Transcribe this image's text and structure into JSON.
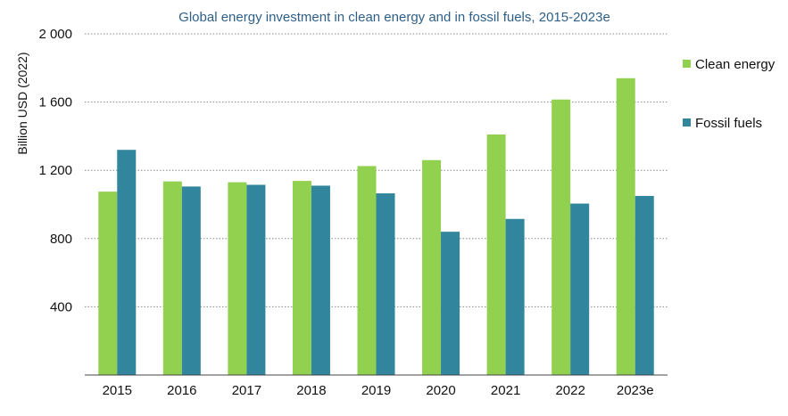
{
  "chart_data": {
    "type": "bar",
    "title": "Global energy investment in clean energy and in fossil fuels, 2015-2023e",
    "xlabel": "",
    "ylabel": "Billion USD (2022)",
    "categories": [
      "2015",
      "2016",
      "2017",
      "2018",
      "2019",
      "2020",
      "2021",
      "2022",
      "2023e"
    ],
    "series": [
      {
        "name": "Clean energy",
        "color": "#92d050",
        "values": [
          1075,
          1135,
          1130,
          1138,
          1225,
          1260,
          1410,
          1615,
          1740
        ]
      },
      {
        "name": "Fossil fuels",
        "color": "#31859c",
        "values": [
          1320,
          1105,
          1115,
          1110,
          1065,
          840,
          915,
          1005,
          1050
        ]
      }
    ],
    "ylim": [
      0,
      2000
    ],
    "yticks": [
      {
        "value": 400,
        "label": "400"
      },
      {
        "value": 800,
        "label": "800"
      },
      {
        "value": 1200,
        "label": "1 200"
      },
      {
        "value": 1600,
        "label": "1 600"
      },
      {
        "value": 2000,
        "label": "2 000"
      }
    ],
    "grid": true,
    "legend_position": "right"
  }
}
